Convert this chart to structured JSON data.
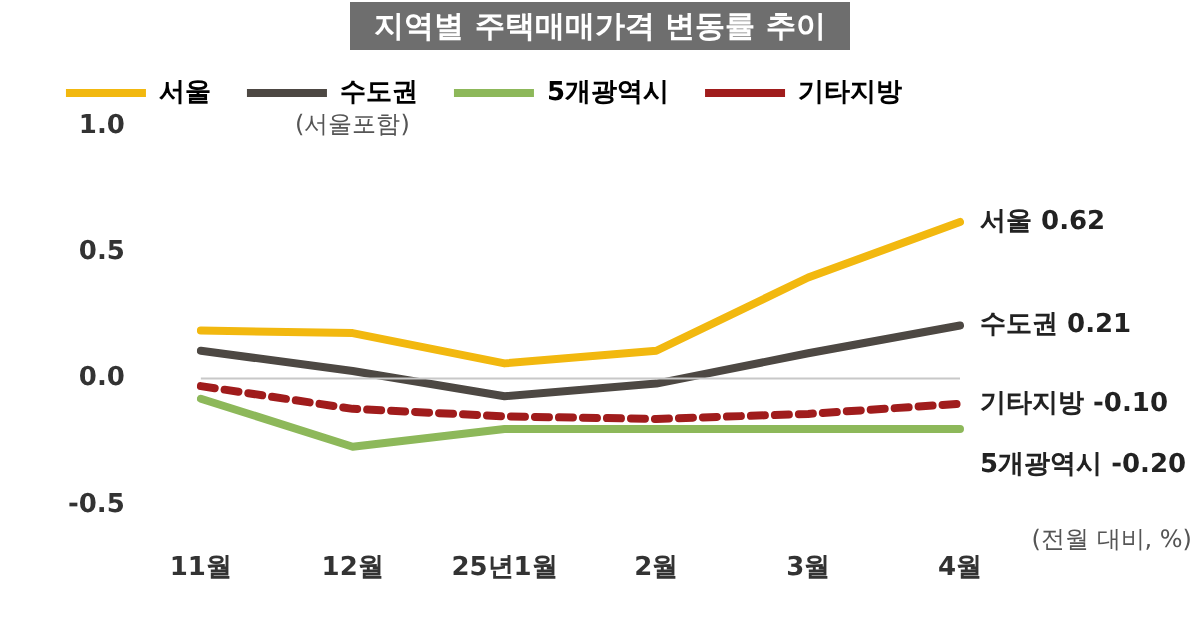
{
  "chart_data": {
    "type": "line",
    "title": "지역별 주택매매가격 변동률 추이",
    "categories": [
      "11월",
      "12월",
      "25년1월",
      "2월",
      "3월",
      "4월"
    ],
    "series": [
      {
        "name": "서울",
        "color": "#f2b80f",
        "values": [
          0.19,
          0.18,
          0.06,
          0.11,
          0.4,
          0.62
        ]
      },
      {
        "name": "수도권",
        "color": "#4d4843",
        "values": [
          0.11,
          0.03,
          -0.07,
          -0.02,
          0.1,
          0.21
        ]
      },
      {
        "name": "5개광역시",
        "color": "#8db85a",
        "values": [
          -0.08,
          -0.27,
          -0.2,
          -0.2,
          -0.2,
          -0.2
        ]
      },
      {
        "name": "기타지방",
        "color": "#a01c1c",
        "values": [
          -0.03,
          -0.12,
          -0.15,
          -0.16,
          -0.14,
          -0.1
        ],
        "line_style": "dashed"
      }
    ],
    "ylim": [
      -0.5,
      1.0
    ],
    "yticks": [
      {
        "value": -0.5,
        "label": "-0.5"
      },
      {
        "value": 0,
        "label": "0.0"
      },
      {
        "value": 0.5,
        "label": "0.5"
      },
      {
        "value": 1,
        "label": "1.0"
      }
    ],
    "grid": false,
    "legend": "top",
    "marker": "none",
    "ref_lines": [
      {
        "axis": "y",
        "value": 0,
        "color": "#c8c8c8"
      }
    ],
    "annotations": [
      "(서울포함)",
      "(전월 대비, %)",
      {
        "text": "서울 0.62",
        "x": "4월",
        "y": 0.62
      },
      {
        "text": "수도권 0.21",
        "x": "4월",
        "y": 0.21
      },
      {
        "text": "기타지방 -0.10",
        "x": "4월",
        "y": -0.1
      },
      {
        "text": "5개광역시 -0.20",
        "x": "4월",
        "y": -0.2
      }
    ]
  }
}
